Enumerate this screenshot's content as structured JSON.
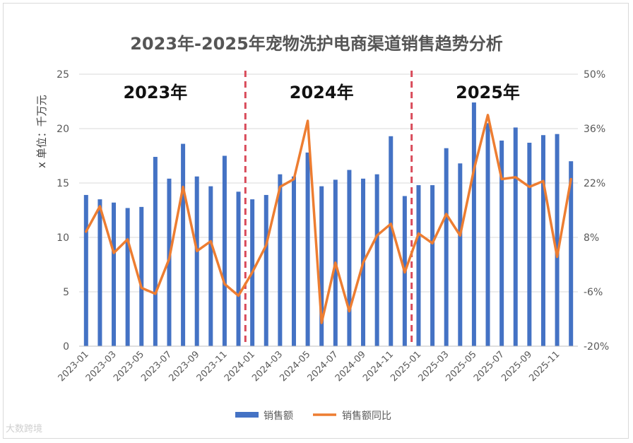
{
  "chart_data": {
    "type": "bar",
    "title": "2023年-2025年宠物洗护电商渠道销售趋势分析",
    "ylabel": "x 单位：千万元",
    "ylim": [
      0,
      25
    ],
    "y_ticks": [
      "0",
      "5",
      "10",
      "15",
      "20",
      "25"
    ],
    "y2lim": [
      -20,
      50
    ],
    "y2_ticks": [
      "-20%",
      "-6%",
      "8%",
      "22%",
      "36%",
      "50%"
    ],
    "grid": "horizontal",
    "legend_position": "bottom",
    "categories": [
      "2023-01",
      "2023-02",
      "2023-03",
      "2023-04",
      "2023-05",
      "2023-06",
      "2023-07",
      "2023-08",
      "2023-09",
      "2023-10",
      "2023-11",
      "2023-12",
      "2024-01",
      "2024-02",
      "2024-03",
      "2024-04",
      "2024-05",
      "2024-06",
      "2024-07",
      "2024-08",
      "2024-09",
      "2024-10",
      "2024-11",
      "2024-12",
      "2025-01",
      "2025-02",
      "2025-03",
      "2025-04",
      "2025-05",
      "2025-06",
      "2025-07",
      "2025-08",
      "2025-09",
      "2025-10",
      "2025-11",
      "2025-12"
    ],
    "x_tick_labels": [
      "2023-01",
      "2023-03",
      "2023-05",
      "2023-07",
      "2023-09",
      "2023-11",
      "2024-01",
      "2024-03",
      "2024-05",
      "2024-07",
      "2024-09",
      "2024-11",
      "2025-01",
      "2025-03",
      "2025-05",
      "2025-07",
      "2025-09",
      "2025-11"
    ],
    "series": [
      {
        "name": "销售额",
        "type": "bar",
        "axis": "left",
        "color": "#4472c4",
        "values": [
          13.9,
          13.5,
          13.2,
          12.7,
          12.8,
          17.4,
          15.4,
          18.6,
          15.6,
          14.7,
          17.5,
          14.2,
          13.5,
          13.9,
          15.8,
          15.6,
          17.8,
          14.7,
          15.3,
          16.2,
          15.4,
          15.8,
          19.3,
          13.8,
          14.8,
          14.8,
          18.2,
          16.8,
          22.4,
          20.5,
          18.9,
          20.1,
          18.7,
          19.4,
          19.5,
          17.0
        ]
      },
      {
        "name": "销售额同比",
        "type": "line",
        "axis": "right",
        "color": "#ed7d31",
        "values": [
          9.5,
          16.0,
          4.0,
          7.5,
          -5.0,
          -6.5,
          2.5,
          21.0,
          4.5,
          7.0,
          -4.0,
          -7.0,
          -1.0,
          6.0,
          21.0,
          23.0,
          38.0,
          -14.0,
          1.5,
          -11.0,
          1.5,
          8.5,
          11.5,
          -1.0,
          9.0,
          6.5,
          14.0,
          8.5,
          25.5,
          39.5,
          23.0,
          23.5,
          21.0,
          22.5,
          3.0,
          23.0
        ]
      }
    ],
    "annotations": {
      "year_labels": [
        {
          "text": "2023年",
          "index": 5
        },
        {
          "text": "2024年",
          "index": 17
        },
        {
          "text": "2025年",
          "index": 29
        }
      ],
      "dividers_after_index": [
        11,
        23
      ],
      "divider_color": "#d94b5a"
    }
  },
  "watermark": "大数跨境"
}
